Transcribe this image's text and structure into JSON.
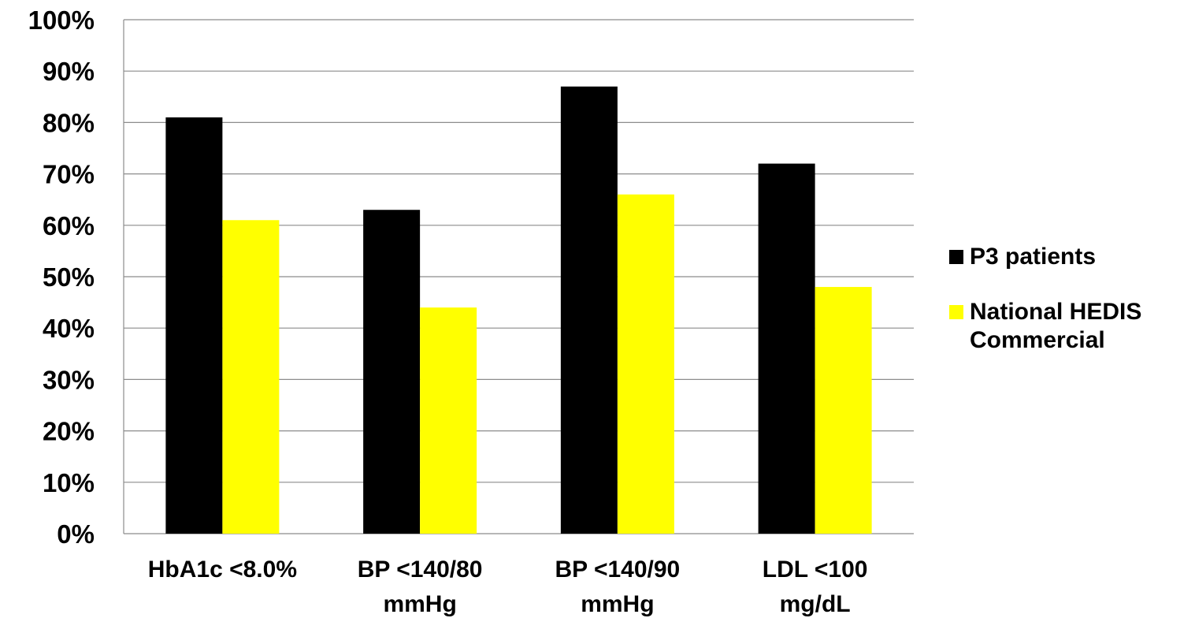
{
  "chart_data": {
    "type": "bar",
    "categories": [
      [
        "HbA1c <8.0%"
      ],
      [
        "BP <140/80",
        "mmHg"
      ],
      [
        "BP <140/90",
        "mmHg"
      ],
      [
        "LDL <100",
        "mg/dL"
      ]
    ],
    "series": [
      {
        "name": "P3 patients",
        "color": "#000000",
        "values": [
          81,
          63,
          87,
          72
        ]
      },
      {
        "name": "National HEDIS Commercial",
        "color": "#ffff00",
        "values": [
          61,
          44,
          66,
          48
        ]
      }
    ],
    "yticks": [
      "0%",
      "10%",
      "20%",
      "30%",
      "40%",
      "50%",
      "60%",
      "70%",
      "80%",
      "90%",
      "100%"
    ],
    "ylim": [
      0,
      100
    ],
    "grid": true,
    "legend_position": "right"
  }
}
